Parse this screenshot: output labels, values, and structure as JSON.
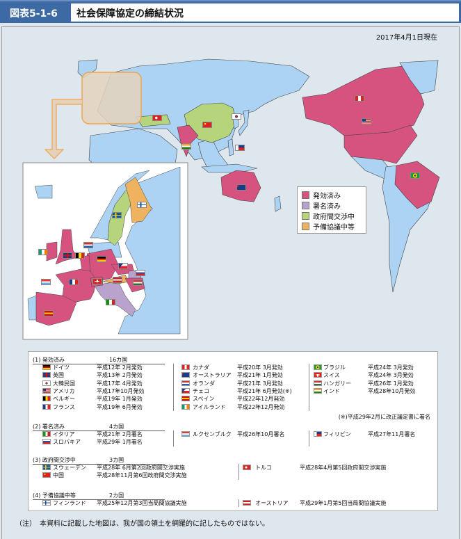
{
  "header": {
    "number": "図表5-1-6",
    "title": "社会保障協定の締結状況"
  },
  "as_of": "2017年4月1日現在",
  "colors": {
    "in_force": "#d6527f",
    "signed": "#b9a2cc",
    "negotiating": "#b6d47c",
    "preliminary": "#efb35f",
    "other_land": "#acd3f3",
    "sea": "#dee6ee"
  },
  "legend": [
    {
      "label": "発効済み",
      "color": "#d6527f"
    },
    {
      "label": "署名済み",
      "color": "#b9a2cc"
    },
    {
      "label": "政府間交渉中",
      "color": "#b6d47c"
    },
    {
      "label": "予備協議中等",
      "color": "#efb35f"
    }
  ],
  "sections": [
    {
      "title": "(1)  発効済み",
      "count": "16カ国",
      "columns": [
        [
          {
            "flag": "de",
            "name": "ドイツ",
            "date": "平成12年  2月発効"
          },
          {
            "flag": "gb",
            "name": "英国",
            "date": "平成13年  2月発効"
          },
          {
            "flag": "kr",
            "name": "大韓民国",
            "date": "平成17年  4月発効"
          },
          {
            "flag": "us",
            "name": "アメリカ",
            "date": "平成17年10月発効"
          },
          {
            "flag": "be",
            "name": "ベルギー",
            "date": "平成19年  1月発効"
          },
          {
            "flag": "fr",
            "name": "フランス",
            "date": "平成19年  6月発効"
          }
        ],
        [
          {
            "flag": "ca",
            "name": "カナダ",
            "date": "平成20年  3月発効"
          },
          {
            "flag": "au",
            "name": "オーストラリア",
            "date": "平成21年  1月発効"
          },
          {
            "flag": "nl",
            "name": "オランダ",
            "date": "平成21年  3月発効"
          },
          {
            "flag": "cz",
            "name": "チェコ",
            "date": "平成21年  6月発効(※)"
          },
          {
            "flag": "es",
            "name": "スペイン",
            "date": "平成22年12月発効"
          },
          {
            "flag": "ie",
            "name": "アイルランド",
            "date": "平成22年12月発効"
          }
        ],
        [
          {
            "flag": "br",
            "name": "ブラジル",
            "date": "平成24年  3月発効"
          },
          {
            "flag": "ch",
            "name": "スイス",
            "date": "平成24年  3月発効"
          },
          {
            "flag": "hu",
            "name": "ハンガリー",
            "date": "平成26年  1月発効"
          },
          {
            "flag": "in",
            "name": "インド",
            "date": "平成28年10月発効"
          }
        ]
      ],
      "footnote": "(※)平成29年2月に改正議定書に署名"
    },
    {
      "title": "(2)  署名済み",
      "count": "4カ国",
      "columns": [
        [
          {
            "flag": "it",
            "name": "イタリア",
            "date": "平成21年  2月署名"
          },
          {
            "flag": "sk",
            "name": "スロバキア",
            "date": "平成29年  1月署名"
          }
        ],
        [
          {
            "flag": "lu",
            "name": "ルクセンブルク",
            "date": "平成26年10月署名"
          }
        ],
        [
          {
            "flag": "ph",
            "name": "フィリピン",
            "date": "平成27年11月署名"
          }
        ]
      ]
    },
    {
      "title": "(3)  政府間交渉中",
      "count": "3カ国",
      "columns": [
        [
          {
            "flag": "se",
            "name": "スウェーデン",
            "date": "平成28年  6月第2回政府間交渉実施"
          },
          {
            "flag": "cn",
            "name": "中国",
            "date": "平成28年11月第6回政府間交渉実施"
          }
        ],
        [
          {
            "flag": "tr",
            "name": "トルコ",
            "date": "平成28年4月第5回政府間交渉実施"
          }
        ]
      ]
    },
    {
      "title": "(4)  予備協議中等",
      "count": "2カ国",
      "columns": [
        [
          {
            "flag": "fi",
            "name": "フィンランド",
            "date": "平成25年12月第3回当局間協議実施"
          }
        ],
        [
          {
            "flag": "at",
            "name": "オーストリア",
            "date": "平成29年1月第5回当局間協議実施"
          }
        ]
      ]
    }
  ],
  "note": "（注）　本資料に記載した地図は、我が国の領土を網羅的に記したものではない。"
}
